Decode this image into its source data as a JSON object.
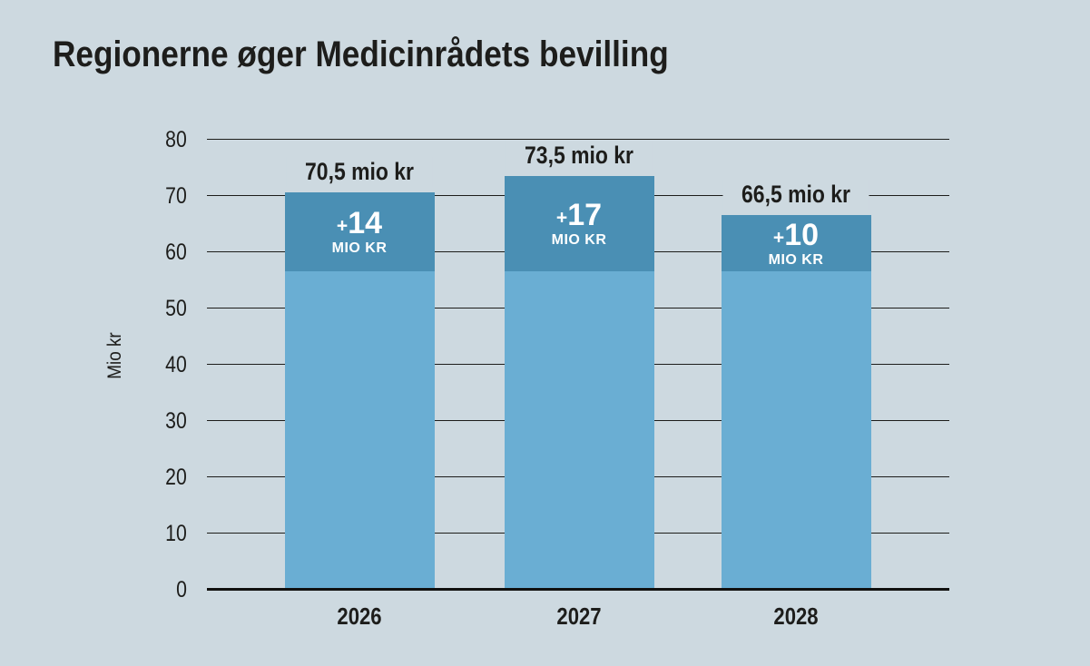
{
  "title": "Regionerne øger Medicinrådets bevilling",
  "colors": {
    "background": "#cdd9e0",
    "bar_base": "#6aaed3",
    "bar_increase": "#4a8fb4",
    "text": "#1d1d1b",
    "increase_text": "#ffffff"
  },
  "chart_data": {
    "type": "bar",
    "stacked": true,
    "title": "Regionerne øger Medicinrådets bevilling",
    "categories": [
      "2026",
      "2027",
      "2028"
    ],
    "series": [
      {
        "name": "base",
        "values": [
          56.5,
          56.5,
          56.5
        ]
      },
      {
        "name": "increase",
        "values": [
          14,
          17,
          10
        ]
      }
    ],
    "totals": [
      70.5,
      73.5,
      66.5
    ],
    "total_labels": [
      "70,5 mio kr",
      "73,5 mio kr",
      "66,5 mio kr"
    ],
    "increase_labels": [
      {
        "amount": "+14",
        "unit": "MIO KR"
      },
      {
        "amount": "+17",
        "unit": "MIO KR"
      },
      {
        "amount": "+10",
        "unit": "MIO KR"
      }
    ],
    "xlabel": "",
    "ylabel": "Mio kr",
    "yticks": [
      0,
      10,
      20,
      30,
      40,
      50,
      60,
      70,
      80
    ],
    "ylim": [
      0,
      80
    ],
    "grid": true,
    "legend": false
  }
}
